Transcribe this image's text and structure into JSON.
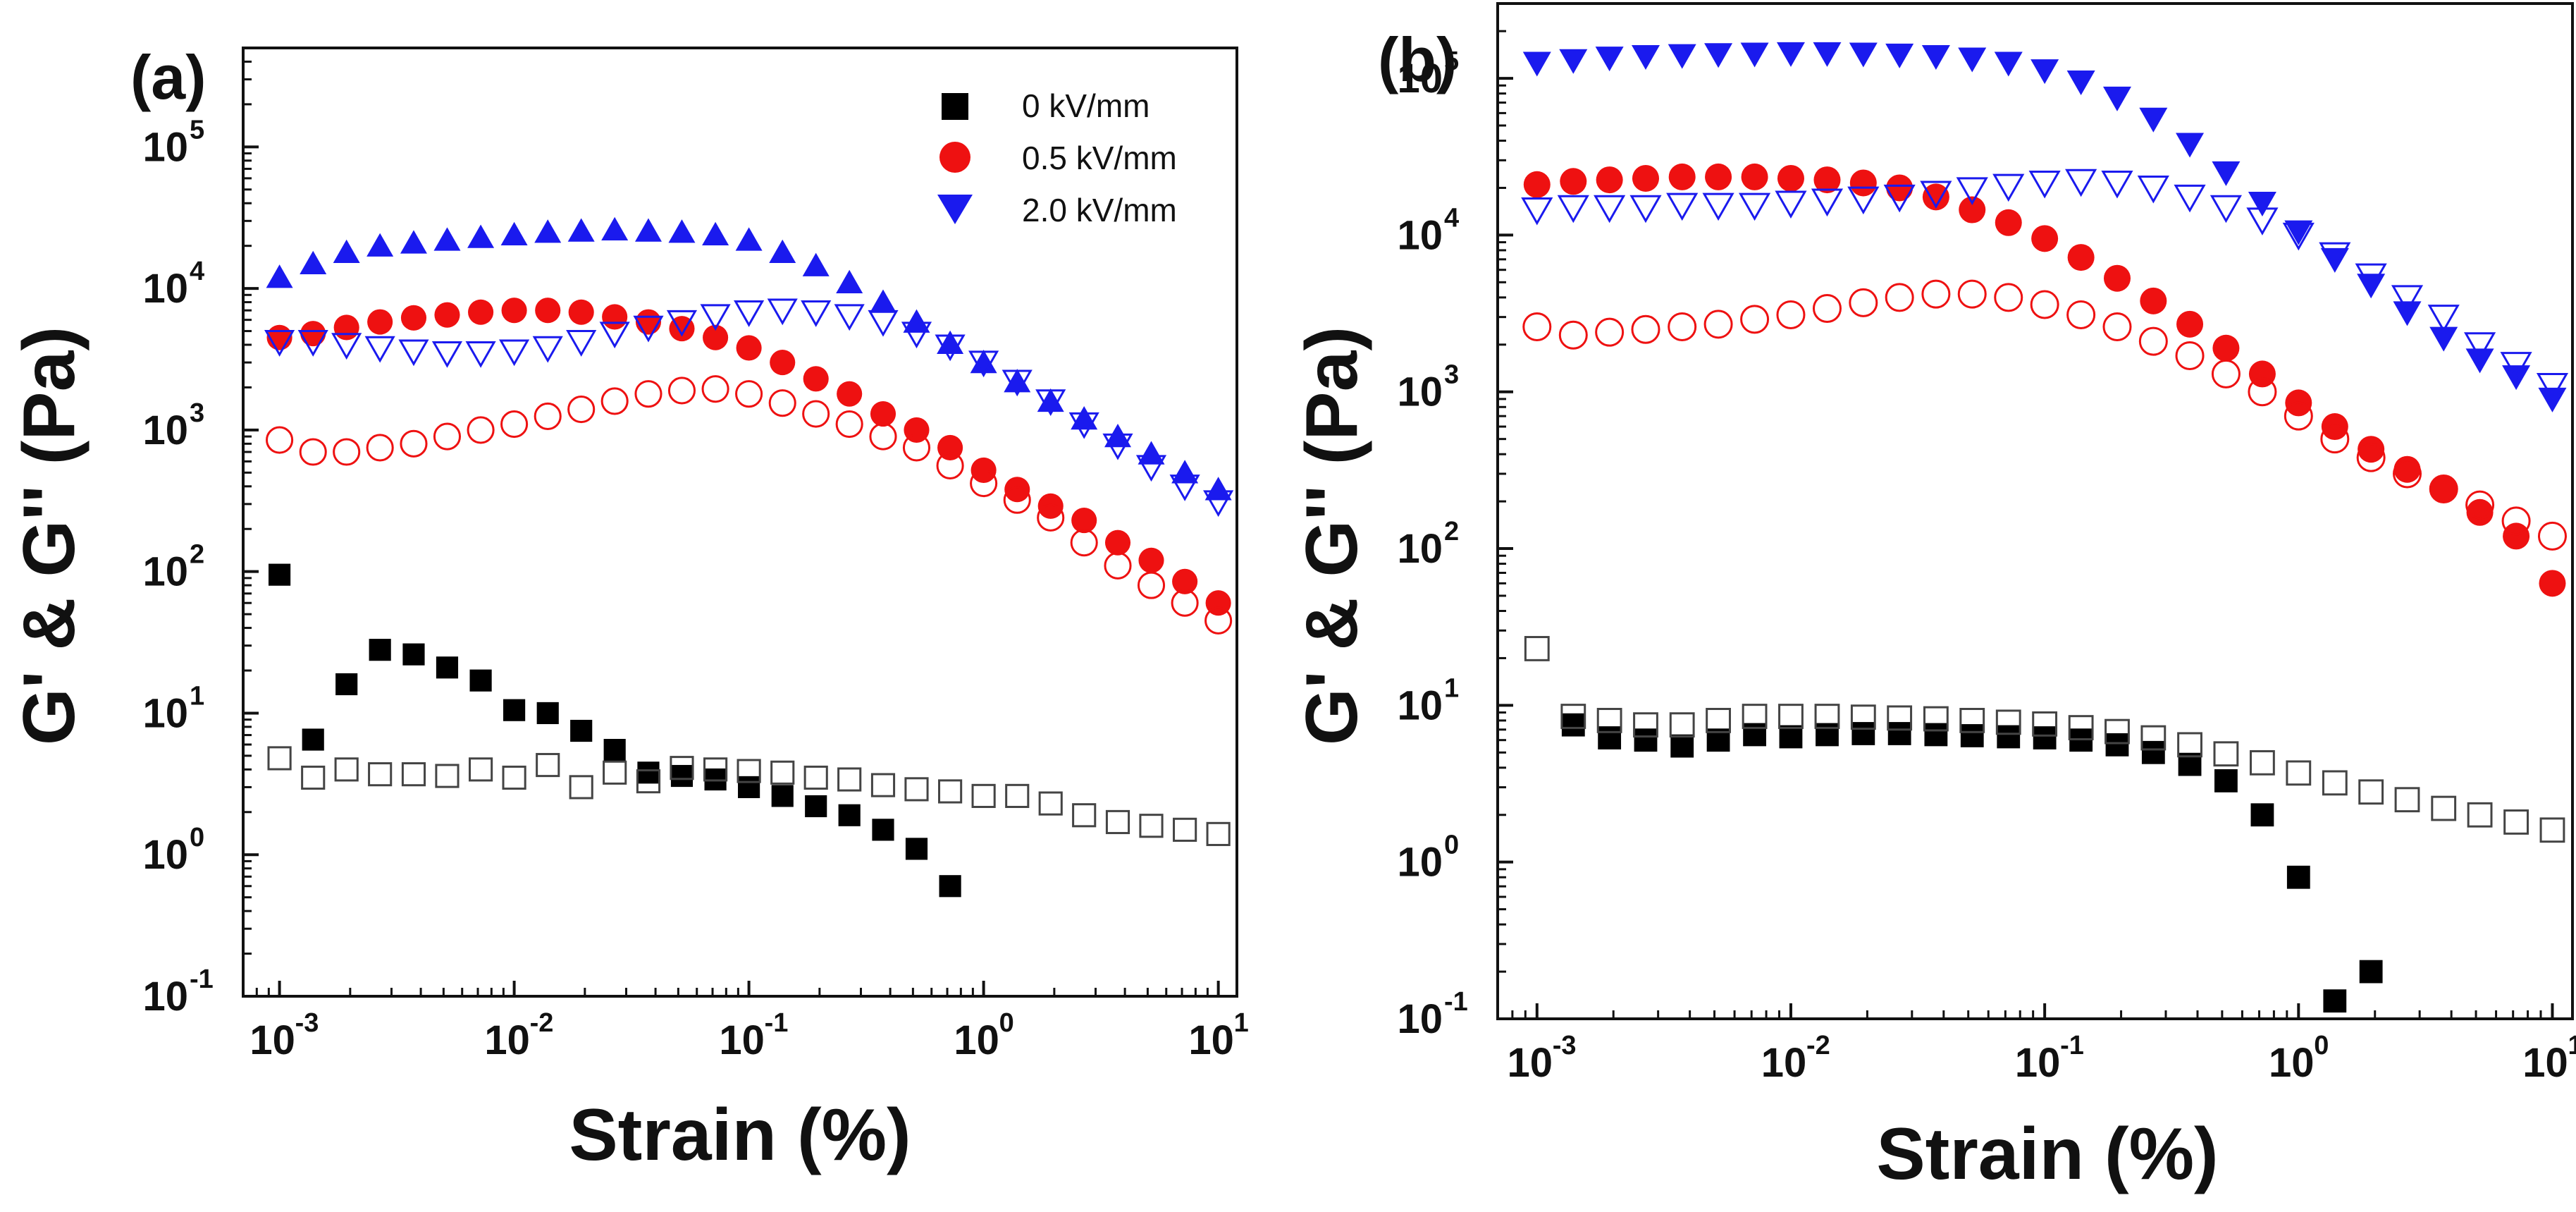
{
  "chart_data": [
    {
      "type": "scatter",
      "panel_label": "(a)",
      "xlabel": "Strain (%)",
      "ylabel": "G' & G'' (Pa)",
      "xscale": "log",
      "yscale": "log",
      "xlim": [
        0.0007,
        12
      ],
      "ylim": [
        0.1,
        500000
      ],
      "x_ticks": [
        {
          "base": "10",
          "exp": "-3",
          "value": 0.001
        },
        {
          "base": "10",
          "exp": "-2",
          "value": 0.01
        },
        {
          "base": "10",
          "exp": "-1",
          "value": 0.1
        },
        {
          "base": "10",
          "exp": "0",
          "value": 1
        },
        {
          "base": "10",
          "exp": "1",
          "value": 10
        }
      ],
      "y_ticks": [
        {
          "base": "10",
          "exp": "-1",
          "value": 0.1
        },
        {
          "base": "10",
          "exp": "0",
          "value": 1
        },
        {
          "base": "10",
          "exp": "1",
          "value": 10
        },
        {
          "base": "10",
          "exp": "2",
          "value": 100
        },
        {
          "base": "10",
          "exp": "3",
          "value": 1000
        },
        {
          "base": "10",
          "exp": "4",
          "value": 10000
        },
        {
          "base": "10",
          "exp": "5",
          "value": 100000
        }
      ],
      "legend": {
        "position": "top-right",
        "entries": [
          {
            "label": "0  kV/mm",
            "marker": "square",
            "color": "#000000"
          },
          {
            "label": "0.5 kV/mm",
            "marker": "circle",
            "color": "#ee1111"
          },
          {
            "label": "2.0 kV/mm",
            "marker": "triangle-down",
            "color": "#1a1aee"
          }
        ]
      },
      "x": [
        0.001,
        0.00139,
        0.00193,
        0.00268,
        0.00373,
        0.00518,
        0.0072,
        0.01,
        0.0139,
        0.0193,
        0.0268,
        0.0373,
        0.0518,
        0.072,
        0.1,
        0.139,
        0.193,
        0.268,
        0.373,
        0.518,
        0.72,
        1.0,
        1.39,
        1.93,
        2.68,
        3.73,
        5.18,
        7.2,
        10.0
      ],
      "series": [
        {
          "name": "0 kV/mm G'",
          "marker": "square",
          "filled": true,
          "color": "#000000",
          "values": [
            95,
            6.5,
            16,
            28,
            26,
            21,
            17,
            10.5,
            10,
            7.5,
            5.5,
            3.8,
            3.6,
            3.4,
            3.0,
            2.6,
            2.2,
            1.9,
            1.5,
            1.1,
            0.6,
            null,
            null,
            null,
            null,
            null,
            null,
            null,
            null
          ]
        },
        {
          "name": "0 kV/mm G''",
          "marker": "square",
          "filled": false,
          "color": "#444444",
          "values": [
            4.8,
            3.5,
            4.0,
            3.7,
            3.7,
            3.6,
            4.0,
            3.5,
            4.3,
            3.0,
            3.8,
            3.3,
            4.1,
            4.0,
            3.9,
            3.8,
            3.5,
            3.4,
            3.1,
            2.9,
            2.8,
            2.6,
            2.6,
            2.3,
            1.9,
            1.7,
            1.6,
            1.5,
            1.4
          ]
        },
        {
          "name": "0.5 kV/mm G'",
          "marker": "circle",
          "filled": true,
          "color": "#ee1111",
          "values": [
            4500,
            4800,
            5300,
            5800,
            6200,
            6500,
            6800,
            7000,
            7000,
            6800,
            6300,
            5800,
            5200,
            4500,
            3800,
            3000,
            2300,
            1800,
            1300,
            1000,
            750,
            520,
            380,
            290,
            230,
            160,
            120,
            85,
            60
          ]
        },
        {
          "name": "0.5 kV/mm G''",
          "marker": "circle",
          "filled": false,
          "color": "#ee1111",
          "values": [
            850,
            700,
            700,
            750,
            800,
            900,
            1000,
            1100,
            1250,
            1400,
            1600,
            1800,
            1900,
            1950,
            1800,
            1550,
            1300,
            1100,
            900,
            750,
            560,
            420,
            320,
            240,
            160,
            110,
            80,
            60,
            45
          ]
        },
        {
          "name": "2.0 kV/mm G'",
          "marker": "triangle-up",
          "filled": true,
          "color": "#1a1aee",
          "values": [
            12000,
            15000,
            18000,
            20000,
            21000,
            22000,
            23000,
            24000,
            25000,
            25500,
            26000,
            25500,
            25000,
            24000,
            22000,
            18000,
            14500,
            11000,
            8000,
            5800,
            4100,
            3000,
            2200,
            1600,
            1200,
            900,
            680,
            500,
            380
          ]
        },
        {
          "name": "2.0 kV/mm G''",
          "marker": "triangle-down",
          "filled": false,
          "color": "#1a1aee",
          "values": [
            4200,
            4200,
            4000,
            3800,
            3600,
            3500,
            3500,
            3600,
            3800,
            4200,
            4800,
            5300,
            5800,
            6400,
            6800,
            7000,
            6800,
            6400,
            5800,
            4800,
            3900,
            3000,
            2200,
            1600,
            1100,
            780,
            550,
            400,
            310
          ]
        }
      ]
    },
    {
      "type": "scatter",
      "panel_label": "(b)",
      "xlabel": "Strain (%)",
      "ylabel": "G' & G'' (Pa)",
      "xscale": "log",
      "yscale": "log",
      "xlim": [
        0.0007,
        12
      ],
      "ylim": [
        0.1,
        300000
      ],
      "x_ticks": [
        {
          "base": "10",
          "exp": "-3",
          "value": 0.001
        },
        {
          "base": "10",
          "exp": "-2",
          "value": 0.01
        },
        {
          "base": "10",
          "exp": "-1",
          "value": 0.1
        },
        {
          "base": "10",
          "exp": "0",
          "value": 1
        },
        {
          "base": "10",
          "exp": "1",
          "value": 10
        }
      ],
      "y_ticks": [
        {
          "base": "10",
          "exp": "-1",
          "value": 0.1
        },
        {
          "base": "10",
          "exp": "0",
          "value": 1
        },
        {
          "base": "10",
          "exp": "1",
          "value": 10
        },
        {
          "base": "10",
          "exp": "2",
          "value": 100
        },
        {
          "base": "10",
          "exp": "3",
          "value": 1000
        },
        {
          "base": "10",
          "exp": "4",
          "value": 10000
        },
        {
          "base": "10",
          "exp": "5",
          "value": 100000
        }
      ],
      "x": [
        0.001,
        0.00139,
        0.00193,
        0.00268,
        0.00373,
        0.00518,
        0.0072,
        0.01,
        0.0139,
        0.0193,
        0.0268,
        0.0373,
        0.0518,
        0.072,
        0.1,
        0.139,
        0.193,
        0.268,
        0.373,
        0.518,
        0.72,
        1.0,
        1.39,
        1.93,
        2.68,
        3.73,
        5.18,
        7.2,
        10.0
      ],
      "series": [
        {
          "name": "0 kV/mm G'",
          "marker": "square",
          "filled": true,
          "color": "#000000",
          "values": [
            null,
            7.5,
            6.2,
            6.0,
            5.5,
            6.0,
            6.5,
            6.3,
            6.5,
            6.6,
            6.6,
            6.5,
            6.4,
            6.3,
            6.2,
            6.0,
            5.6,
            5.0,
            4.2,
            3.3,
            2.0,
            0.8,
            0.13,
            0.2,
            null,
            null,
            null,
            null,
            null
          ]
        },
        {
          "name": "0 kV/mm G''",
          "marker": "square",
          "filled": false,
          "color": "#444444",
          "values": [
            23,
            8.5,
            8.0,
            7.5,
            7.5,
            8.0,
            8.5,
            8.5,
            8.5,
            8.4,
            8.3,
            8.2,
            8.0,
            7.8,
            7.6,
            7.2,
            6.8,
            6.2,
            5.6,
            4.9,
            4.3,
            3.7,
            3.2,
            2.8,
            2.5,
            2.2,
            2.0,
            1.8,
            1.6
          ]
        },
        {
          "name": "0.5 kV/mm G'",
          "marker": "circle",
          "filled": true,
          "color": "#ee1111",
          "values": [
            21000,
            22000,
            22500,
            23000,
            23500,
            23500,
            23500,
            23000,
            22500,
            21500,
            20000,
            17500,
            14500,
            12000,
            9500,
            7200,
            5300,
            3800,
            2700,
            1900,
            1300,
            850,
            600,
            430,
            320,
            240,
            170,
            120,
            60
          ]
        },
        {
          "name": "0.5 kV/mm G''",
          "marker": "circle",
          "filled": false,
          "color": "#ee1111",
          "values": [
            2600,
            2300,
            2400,
            2500,
            2600,
            2700,
            2900,
            3100,
            3400,
            3700,
            4000,
            4200,
            4200,
            4000,
            3600,
            3100,
            2600,
            2100,
            1700,
            1300,
            1000,
            700,
            500,
            380,
            300,
            240,
            190,
            150,
            120
          ]
        },
        {
          "name": "2.0 kV/mm G'",
          "marker": "triangle-down",
          "filled": true,
          "color": "#1a1aee",
          "values": [
            125000,
            130000,
            135000,
            138000,
            140000,
            142000,
            143000,
            144000,
            144000,
            143000,
            141000,
            138000,
            133000,
            125000,
            112000,
            95000,
            75000,
            55000,
            38000,
            25000,
            16000,
            10500,
            7000,
            4800,
            3200,
            2200,
            1600,
            1250,
            900
          ]
        },
        {
          "name": "2.0 kV/mm G''",
          "marker": "triangle-down",
          "filled": false,
          "color": "#1a1aee",
          "values": [
            14500,
            15000,
            15000,
            15000,
            15500,
            15500,
            15500,
            16000,
            16500,
            17000,
            17500,
            18500,
            19500,
            20500,
            21500,
            22000,
            21500,
            20000,
            17500,
            15000,
            12500,
            10000,
            7500,
            5500,
            4000,
            3000,
            2000,
            1500,
            1100
          ]
        }
      ]
    }
  ]
}
